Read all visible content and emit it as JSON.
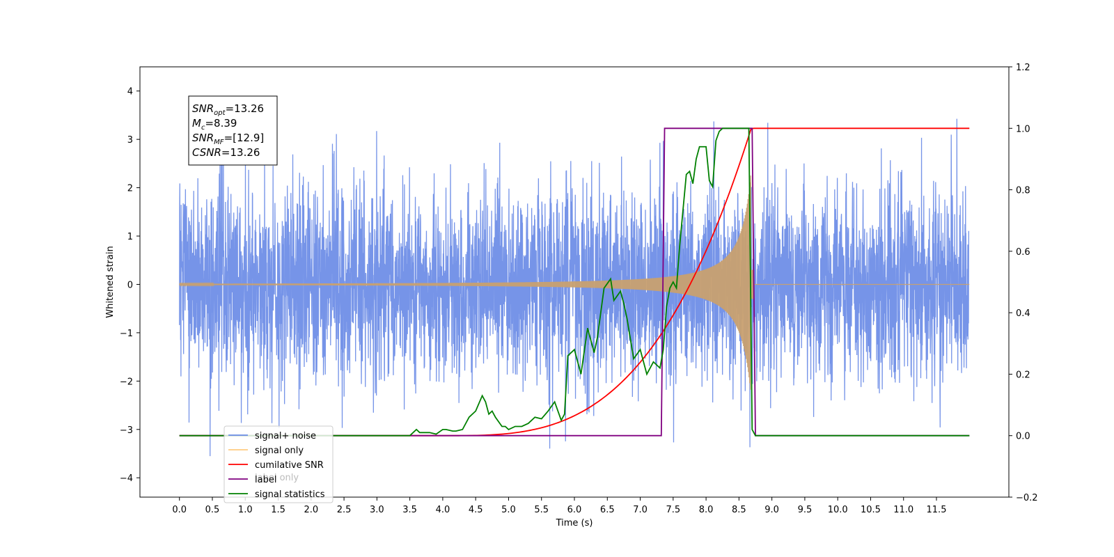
{
  "chart_data": {
    "type": "line",
    "xlabel": "Time (s)",
    "ylabel": "Whitened strain",
    "xlim": [
      -0.6,
      12.6
    ],
    "ylim": [
      -4.4,
      4.5
    ],
    "y2lim": [
      -0.2,
      1.2
    ],
    "x_ticks": [
      "0.0",
      "0.5",
      "1.0",
      "1.5",
      "2.0",
      "2.5",
      "3.0",
      "3.5",
      "4.0",
      "4.5",
      "5.0",
      "5.5",
      "6.0",
      "6.5",
      "7.0",
      "7.5",
      "8.0",
      "8.5",
      "9.0",
      "9.5",
      "10.0",
      "10.5",
      "11.0",
      "11.5"
    ],
    "y_ticks": [
      "−4",
      "−3",
      "−2",
      "−1",
      "0",
      "1",
      "2",
      "3",
      "4"
    ],
    "y2_ticks": [
      "−0.2",
      "0.0",
      "0.2",
      "0.4",
      "0.6",
      "0.8",
      "1.0",
      "1.2"
    ],
    "grid": false,
    "legend_position": "lower-left",
    "series": [
      {
        "name": "signal+ noise",
        "axis": "left",
        "color": "#6a8be6",
        "description": "noise about 0 (std ~1), from 0.0 to 12.0 s"
      },
      {
        "name": "signal only",
        "axis": "left",
        "color": "#c8a070",
        "description": "chirp growing from ~4.0 s to peak amplitude ~2.6 at 8.7 s, then 0"
      },
      {
        "name": "cumilative SNR",
        "axis": "right",
        "color": "#ff0000",
        "x": [
          0.0,
          4.0,
          4.5,
          5.0,
          5.5,
          6.0,
          6.5,
          7.0,
          7.5,
          8.0,
          8.5,
          8.68,
          8.7,
          12.0
        ],
        "y": [
          0.0,
          0.0,
          0.01,
          0.04,
          0.09,
          0.15,
          0.21,
          0.28,
          0.37,
          0.52,
          0.78,
          0.99,
          1.0,
          1.0
        ]
      },
      {
        "name": "label",
        "axis": "right",
        "color": "#800080",
        "x": [
          0.0,
          7.32,
          7.37,
          8.7,
          8.75,
          12.0
        ],
        "y": [
          0.0,
          0.0,
          1.0,
          1.0,
          0.0,
          0.0
        ]
      },
      {
        "name": "signal statistics",
        "axis": "right",
        "color": "#008000",
        "x": [
          0.0,
          3.5,
          3.6,
          3.65,
          3.7,
          3.8,
          3.9,
          4.0,
          4.05,
          4.15,
          4.2,
          4.3,
          4.4,
          4.5,
          4.6,
          4.65,
          4.7,
          4.75,
          4.8,
          4.9,
          4.95,
          5.0,
          5.1,
          5.2,
          5.3,
          5.4,
          5.5,
          5.6,
          5.7,
          5.75,
          5.8,
          5.85,
          5.9,
          6.0,
          6.1,
          6.2,
          6.3,
          6.35,
          6.45,
          6.55,
          6.6,
          6.7,
          6.75,
          6.8,
          6.9,
          7.0,
          7.1,
          7.2,
          7.3,
          7.35,
          7.4,
          7.45,
          7.5,
          7.55,
          7.6,
          7.7,
          7.75,
          7.8,
          7.85,
          7.9,
          8.0,
          8.05,
          8.1,
          8.15,
          8.2,
          8.25,
          8.3,
          8.4,
          8.5,
          8.6,
          8.65,
          8.7,
          8.75,
          8.8,
          9.0,
          12.0
        ],
        "y": [
          0.0,
          0.0,
          0.02,
          0.01,
          0.01,
          0.01,
          0.005,
          0.02,
          0.02,
          0.015,
          0.015,
          0.02,
          0.06,
          0.08,
          0.13,
          0.11,
          0.07,
          0.08,
          0.06,
          0.03,
          0.03,
          0.02,
          0.03,
          0.03,
          0.04,
          0.06,
          0.055,
          0.08,
          0.11,
          0.08,
          0.05,
          0.07,
          0.26,
          0.28,
          0.2,
          0.35,
          0.27,
          0.32,
          0.48,
          0.51,
          0.44,
          0.47,
          0.43,
          0.38,
          0.25,
          0.28,
          0.2,
          0.24,
          0.22,
          0.28,
          0.42,
          0.48,
          0.5,
          0.48,
          0.62,
          0.85,
          0.86,
          0.82,
          0.9,
          0.94,
          0.94,
          0.83,
          0.81,
          0.96,
          0.99,
          1.0,
          1.0,
          1.0,
          1.0,
          1.0,
          1.0,
          0.02,
          0.0,
          0.0,
          0.0,
          0.0
        ]
      }
    ],
    "annotation": {
      "lines": [
        {
          "sym": "SNR",
          "sub": "opt",
          "value": "=13.26"
        },
        {
          "sym": "M",
          "sub": "c",
          "value": "=8.39"
        },
        {
          "sym": "SNR",
          "sub": "MF",
          "value": "=[12.9]"
        },
        {
          "sym": "CSNR",
          "sub": "",
          "value": "=13.26"
        }
      ]
    },
    "legend_entries": [
      {
        "name": "signal+ noise",
        "color": "#6a8be6"
      },
      {
        "name": "signal only",
        "color": "#ffcc80"
      },
      {
        "name": "cumilative SNR",
        "color": "#ff0000"
      },
      {
        "name": "label",
        "color": "#800080"
      },
      {
        "name": "signal statistics",
        "color": "#008000"
      }
    ],
    "legend_ghost_text": "label only"
  }
}
